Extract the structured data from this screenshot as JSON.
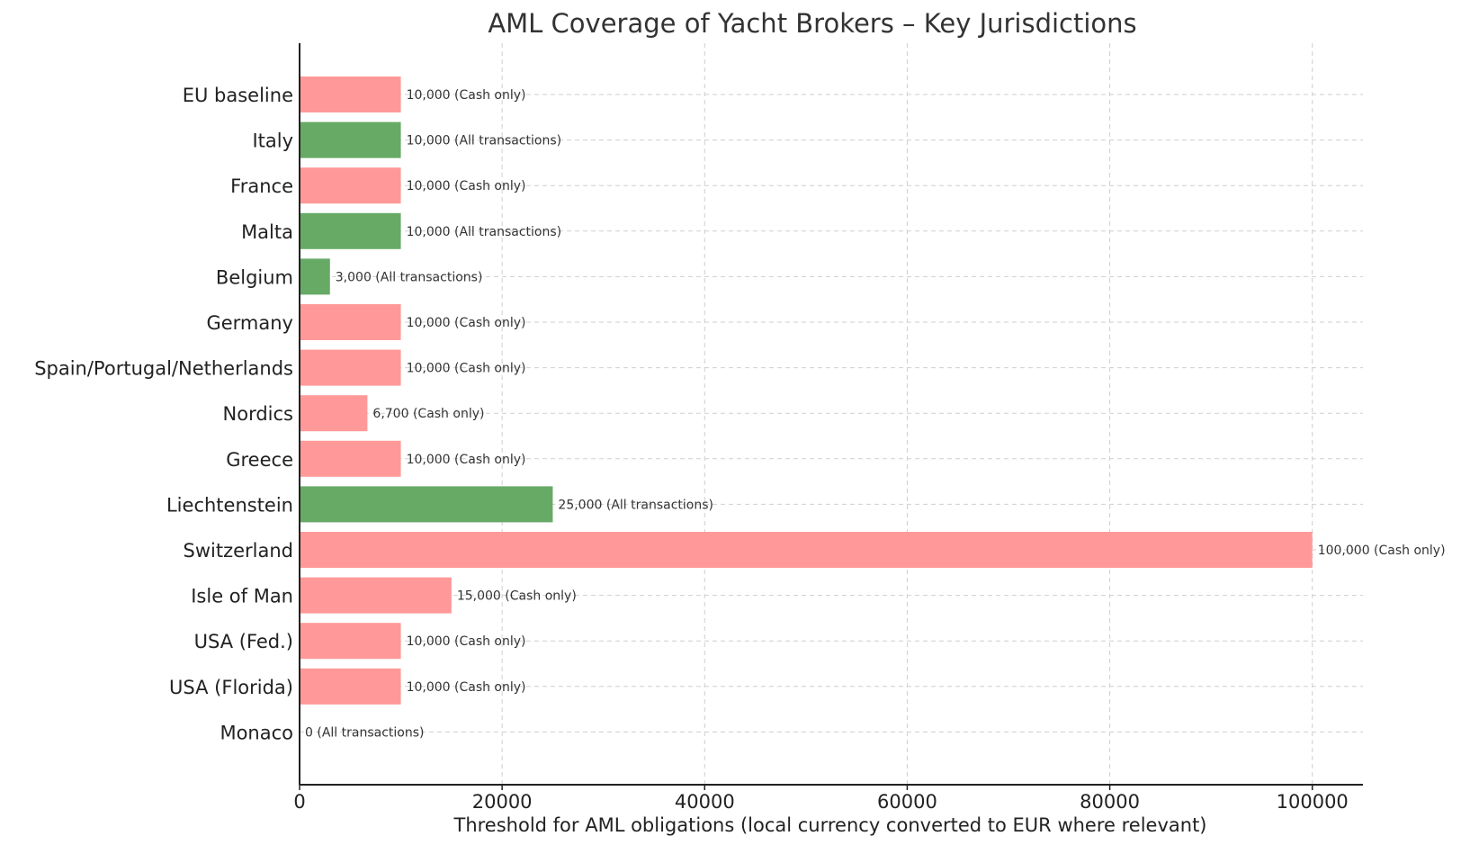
{
  "chart_data": {
    "type": "bar",
    "orientation": "horizontal",
    "title": "AML Coverage of Yacht Brokers – Key Jurisdictions",
    "xlabel": "Threshold for AML obligations (local currency converted to EUR where relevant)",
    "ylabel": "",
    "xlim": [
      0,
      105000
    ],
    "xticks": [
      0,
      20000,
      40000,
      60000,
      80000,
      100000
    ],
    "grid": true,
    "categories": [
      "EU baseline",
      "Italy",
      "France",
      "Malta",
      "Belgium",
      "Germany",
      "Spain/Portugal/Netherlands",
      "Nordics",
      "Greece",
      "Liechtenstein",
      "Switzerland",
      "Isle of Man",
      "USA (Fed.)",
      "USA (Florida)",
      "Monaco"
    ],
    "values": [
      10000,
      10000,
      10000,
      10000,
      3000,
      10000,
      10000,
      6700,
      10000,
      25000,
      100000,
      15000,
      10000,
      10000,
      0
    ],
    "scope": [
      "Cash only",
      "All transactions",
      "Cash only",
      "All transactions",
      "All transactions",
      "Cash only",
      "Cash only",
      "Cash only",
      "Cash only",
      "All transactions",
      "Cash only",
      "Cash only",
      "Cash only",
      "Cash only",
      "All transactions"
    ],
    "data_labels": [
      "10,000 (Cash only)",
      "10,000 (All transactions)",
      "10,000 (Cash only)",
      "10,000 (All transactions)",
      "3,000 (All transactions)",
      "10,000 (Cash only)",
      "10,000 (Cash only)",
      "6,700 (Cash only)",
      "10,000 (Cash only)",
      "25,000 (All transactions)",
      "100,000 (Cash only)",
      "15,000 (Cash only)",
      "10,000 (Cash only)",
      "10,000 (Cash only)",
      "0 (All transactions)"
    ],
    "colors": {
      "Cash only": "#ff9999",
      "All transactions": "#66aa66"
    }
  }
}
